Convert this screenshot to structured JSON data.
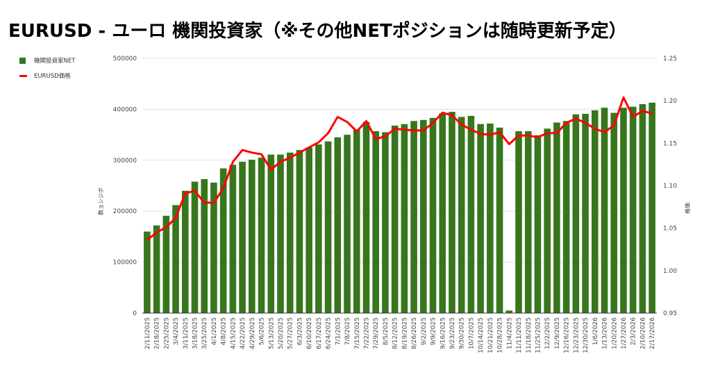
{
  "title": "EURUSD - ユーロ 機関投資家（※その他NETポジションは随時更新予定）",
  "colors": {
    "bar": "#38761d",
    "line": "#ff0000",
    "grid": "#e0e0e0"
  },
  "chart_data": {
    "type": "bar+line",
    "title": "EURUSD - ユーロ 機関投資家（※その他NETポジションは随時更新予定）",
    "ylabel_left": "数ョシジボ",
    "ylabel_right": "格価",
    "ylim_left": [
      0,
      500000
    ],
    "ylim_right": [
      0.95,
      1.25
    ],
    "yticks_left": [
      "0",
      "100000",
      "200000",
      "300000",
      "400000",
      "500000"
    ],
    "yticks_right": [
      "0.95",
      "1.00",
      "1.05",
      "1.10",
      "1.15",
      "1.20",
      "1.25"
    ],
    "grid": true,
    "legend_position": "top-left",
    "categories": [
      "2/11/2025",
      "2/18/2025",
      "2/25/2025",
      "3/4/2025",
      "3/11/2025",
      "3/18/2025",
      "3/25/2025",
      "4/1/2025",
      "4/8/2025",
      "4/15/2025",
      "4/22/2025",
      "4/29/2025",
      "5/6/2025",
      "5/13/2025",
      "5/20/2025",
      "5/27/2025",
      "6/3/2025",
      "6/10/2025",
      "6/17/2025",
      "6/24/2025",
      "7/1/2025",
      "7/8/2025",
      "7/15/2025",
      "7/22/2025",
      "7/29/2025",
      "8/5/2025",
      "8/12/2025",
      "8/19/2025",
      "8/26/2025",
      "9/2/2025",
      "9/9/2025",
      "9/16/2025",
      "9/23/2025",
      "9/30/2025",
      "10/7/2025",
      "10/14/2025",
      "10/21/2025",
      "10/28/2025",
      "11/4/2025",
      "11/11/2025",
      "11/18/2025",
      "11/25/2025",
      "12/2/2025",
      "12/9/2025",
      "12/16/2025",
      "12/23/2025",
      "12/30/2025",
      "1/6/2026",
      "1/13/2026",
      "1/20/2026",
      "1/27/2026",
      "2/3/2026",
      "2/10/2026",
      "2/17/2026"
    ],
    "series": [
      {
        "name": "機関投資家NET",
        "type": "bar",
        "values": [
          160000,
          172000,
          191000,
          212000,
          240000,
          258000,
          263000,
          256000,
          284000,
          291000,
          297000,
          301000,
          305000,
          311000,
          311000,
          315000,
          320000,
          325000,
          331000,
          337000,
          345000,
          350000,
          360000,
          375000,
          357000,
          355000,
          368000,
          371000,
          377000,
          379000,
          383000,
          392000,
          395000,
          385000,
          387000,
          371000,
          372000,
          364000,
          5000,
          357000,
          357000,
          349000,
          362000,
          374000,
          377000,
          390000,
          391000,
          398000,
          403000,
          393000,
          403000,
          405000,
          410000,
          413000
        ]
      },
      {
        "name": "EURUSD価格",
        "type": "line",
        "values": [
          1.036,
          1.045,
          1.051,
          1.062,
          1.091,
          1.094,
          1.08,
          1.08,
          1.097,
          1.128,
          1.142,
          1.139,
          1.137,
          1.119,
          1.128,
          1.133,
          1.139,
          1.145,
          1.151,
          1.162,
          1.181,
          1.175,
          1.164,
          1.176,
          1.155,
          1.158,
          1.167,
          1.166,
          1.165,
          1.165,
          1.174,
          1.186,
          1.183,
          1.172,
          1.166,
          1.161,
          1.16,
          1.163,
          1.149,
          1.159,
          1.159,
          1.157,
          1.162,
          1.162,
          1.174,
          1.179,
          1.174,
          1.167,
          1.163,
          1.171,
          1.204,
          1.181,
          1.188,
          1.185
        ]
      }
    ]
  }
}
